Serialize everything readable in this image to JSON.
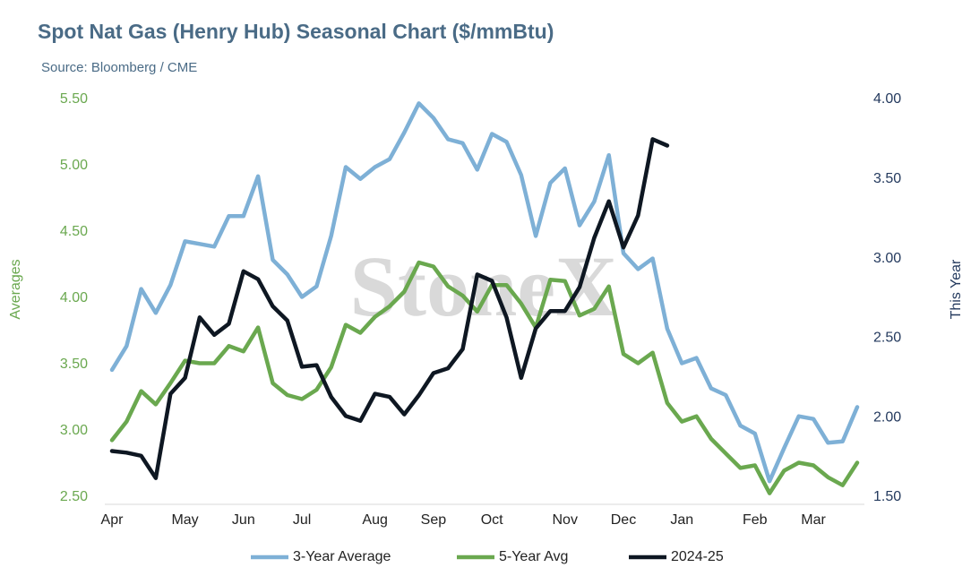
{
  "chart_data": {
    "type": "line",
    "title": "Spot Nat Gas (Henry Hub) Seasonal Chart ($/mmBtu)",
    "subtitle": "Source: Bloomberg / CME",
    "watermark": "StoneX",
    "y_label": "Averages",
    "y2_label": "This Year",
    "categories": [
      "Apr",
      null,
      null,
      null,
      null,
      "May",
      null,
      null,
      null,
      "Jun",
      null,
      null,
      null,
      "Jul",
      null,
      null,
      null,
      null,
      "Aug",
      null,
      null,
      null,
      "Sep",
      null,
      null,
      null,
      "Oct",
      null,
      null,
      null,
      null,
      "Nov",
      null,
      null,
      null,
      "Dec",
      null,
      null,
      null,
      "Jan",
      null,
      null,
      null,
      null,
      "Feb",
      null,
      null,
      null,
      "Mar",
      null,
      null,
      null
    ],
    "ylim": [
      2.5,
      5.5
    ],
    "yticks": [
      {
        "value": 2.5,
        "label": "2.50"
      },
      {
        "value": 3,
        "label": "3.00"
      },
      {
        "value": 3.5,
        "label": "3.50"
      },
      {
        "value": 4,
        "label": "4.00"
      },
      {
        "value": 4.5,
        "label": "4.50"
      },
      {
        "value": 5,
        "label": "5.00"
      },
      {
        "value": 5.5,
        "label": "5.50"
      }
    ],
    "y2lim": [
      1.5,
      4
    ],
    "y2ticks": [
      {
        "value": 1.5,
        "label": "1.50"
      },
      {
        "value": 2,
        "label": "2.00"
      },
      {
        "value": 2.5,
        "label": "2.50"
      },
      {
        "value": 3,
        "label": "3.00"
      },
      {
        "value": 3.5,
        "label": "3.50"
      },
      {
        "value": 4,
        "label": "4.00"
      }
    ],
    "legend": "bottom",
    "series": [
      {
        "name": "3-Year Average",
        "color": "#7eb0d6",
        "axis": "y",
        "values": [
          3.46,
          3.64,
          4.07,
          3.89,
          4.1,
          4.43,
          4.41,
          4.39,
          4.62,
          4.62,
          4.92,
          4.29,
          4.18,
          4.01,
          4.09,
          4.47,
          4.99,
          4.9,
          4.99,
          5.05,
          5.25,
          5.47,
          5.36,
          5.2,
          5.17,
          4.97,
          5.24,
          5.18,
          4.93,
          4.47,
          4.87,
          4.98,
          4.55,
          4.73,
          5.08,
          4.34,
          4.22,
          4.3,
          3.77,
          3.51,
          3.55,
          3.32,
          3.27,
          3.04,
          2.98,
          2.62,
          2.87,
          3.11,
          3.09,
          2.91,
          2.92,
          3.18
        ]
      },
      {
        "name": "5-Year Avg",
        "color": "#6aa84f",
        "axis": "y",
        "values": [
          2.93,
          3.07,
          3.3,
          3.2,
          3.36,
          3.53,
          3.51,
          3.51,
          3.64,
          3.6,
          3.78,
          3.36,
          3.27,
          3.24,
          3.31,
          3.48,
          3.8,
          3.74,
          3.86,
          3.94,
          4.05,
          4.27,
          4.24,
          4.09,
          4.02,
          3.9,
          4.1,
          4.1,
          3.96,
          3.78,
          4.14,
          4.13,
          3.87,
          3.92,
          4.09,
          3.58,
          3.51,
          3.59,
          3.21,
          3.07,
          3.11,
          2.94,
          2.83,
          2.72,
          2.74,
          2.53,
          2.7,
          2.76,
          2.74,
          2.65,
          2.59,
          2.76
        ]
      },
      {
        "name": "2024-25",
        "color": "#0e1722",
        "axis": "y2",
        "values": [
          1.79,
          1.78,
          1.76,
          1.62,
          2.15,
          2.25,
          2.63,
          2.52,
          2.59,
          2.92,
          2.87,
          2.7,
          2.61,
          2.32,
          2.33,
          2.13,
          2.01,
          1.98,
          2.15,
          2.13,
          2.02,
          2.14,
          2.28,
          2.31,
          2.43,
          2.9,
          2.86,
          2.63,
          2.25,
          2.56,
          2.67,
          2.67,
          2.82,
          3.13,
          3.36,
          3.07,
          3.27,
          3.75,
          3.71,
          null,
          null,
          null,
          null,
          null,
          null,
          null,
          null,
          null,
          null,
          null,
          null,
          null
        ]
      }
    ]
  }
}
